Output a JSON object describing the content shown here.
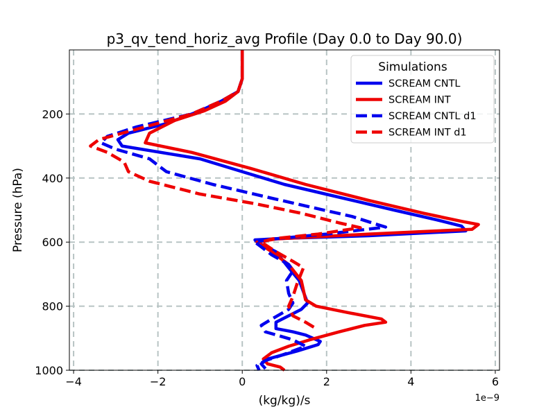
{
  "chart_data": {
    "type": "line",
    "title": "p3_qv_tend_horiz_avg Profile (Day 0.0 to Day 90.0)",
    "xlabel": "(kg/kg)/s",
    "ylabel": "Pressure (hPa)",
    "x_offset_text": "1e−9",
    "xlim": [
      -4.1,
      6.1
    ],
    "ylim": [
      1000,
      0
    ],
    "xticks": [
      -4,
      -2,
      0,
      2,
      4,
      6
    ],
    "xtick_labels": [
      "−4",
      "−2",
      "0",
      "2",
      "4",
      "6"
    ],
    "yticks": [
      200,
      400,
      600,
      800,
      1000
    ],
    "ytick_labels": [
      "200",
      "400",
      "600",
      "800",
      "1000"
    ],
    "grid": true,
    "legend": {
      "title": "Simulations",
      "placement": "top-right"
    },
    "series": [
      {
        "name": "SCREAM CNTL",
        "color": "#0000ee",
        "style": "solid",
        "points": [
          [
            0,
            0
          ],
          [
            0,
            40
          ],
          [
            0,
            90
          ],
          [
            -0.1,
            130
          ],
          [
            -0.5,
            160
          ],
          [
            -1.0,
            190
          ],
          [
            -1.8,
            230
          ],
          [
            -2.7,
            260
          ],
          [
            -2.95,
            280
          ],
          [
            -2.85,
            300
          ],
          [
            -1.0,
            340
          ],
          [
            0.0,
            380
          ],
          [
            1.0,
            420
          ],
          [
            2.3,
            460
          ],
          [
            3.6,
            500
          ],
          [
            4.6,
            530
          ],
          [
            5.2,
            550
          ],
          [
            5.3,
            565
          ],
          [
            3.0,
            580
          ],
          [
            1.0,
            588
          ],
          [
            0.3,
            593
          ],
          [
            0.35,
            600
          ],
          [
            0.8,
            630
          ],
          [
            1.1,
            680
          ],
          [
            1.35,
            720
          ],
          [
            1.55,
            790
          ],
          [
            1.4,
            810
          ],
          [
            0.8,
            850
          ],
          [
            0.8,
            870
          ],
          [
            1.2,
            880
          ],
          [
            1.5,
            890
          ],
          [
            1.85,
            910
          ],
          [
            1.8,
            920
          ],
          [
            1.3,
            940
          ],
          [
            0.6,
            965
          ],
          [
            0.45,
            980
          ],
          [
            0.55,
            995
          ]
        ]
      },
      {
        "name": "SCREAM INT",
        "color": "#ee0000",
        "style": "solid",
        "points": [
          [
            0,
            0
          ],
          [
            0,
            40
          ],
          [
            0,
            90
          ],
          [
            -0.1,
            130
          ],
          [
            -0.4,
            160
          ],
          [
            -0.9,
            190
          ],
          [
            -1.6,
            220
          ],
          [
            -2.2,
            260
          ],
          [
            -2.3,
            290
          ],
          [
            -1.2,
            320
          ],
          [
            0.2,
            370
          ],
          [
            1.5,
            420
          ],
          [
            3.0,
            470
          ],
          [
            4.3,
            510
          ],
          [
            5.2,
            535
          ],
          [
            5.6,
            545
          ],
          [
            5.45,
            560
          ],
          [
            3.0,
            575
          ],
          [
            0.8,
            590
          ],
          [
            0.35,
            600
          ],
          [
            0.7,
            630
          ],
          [
            1.1,
            670
          ],
          [
            1.4,
            720
          ],
          [
            1.5,
            780
          ],
          [
            1.75,
            800
          ],
          [
            2.5,
            820
          ],
          [
            3.3,
            840
          ],
          [
            3.4,
            850
          ],
          [
            2.9,
            860
          ],
          [
            2.3,
            880
          ],
          [
            1.6,
            905
          ],
          [
            1.1,
            925
          ],
          [
            0.7,
            945
          ],
          [
            0.5,
            965
          ],
          [
            0.6,
            980
          ],
          [
            0.9,
            990
          ],
          [
            1.0,
            1000
          ]
        ]
      },
      {
        "name": "SCREAM CNTL d1",
        "color": "#0000ee",
        "style": "dashed",
        "points": [
          [
            0,
            0
          ],
          [
            0,
            40
          ],
          [
            0,
            90
          ],
          [
            -0.1,
            130
          ],
          [
            -0.5,
            160
          ],
          [
            -1.2,
            200
          ],
          [
            -2.5,
            240
          ],
          [
            -3.2,
            270
          ],
          [
            -3.35,
            290
          ],
          [
            -3.0,
            310
          ],
          [
            -2.2,
            340
          ],
          [
            -1.8,
            380
          ],
          [
            -0.7,
            420
          ],
          [
            0.6,
            460
          ],
          [
            1.6,
            490
          ],
          [
            2.6,
            520
          ],
          [
            3.2,
            545
          ],
          [
            3.4,
            553
          ],
          [
            2.0,
            575
          ],
          [
            0.6,
            592
          ],
          [
            0.3,
            600
          ],
          [
            0.7,
            640
          ],
          [
            1.1,
            670
          ],
          [
            1.2,
            690
          ],
          [
            1.05,
            720
          ],
          [
            1.1,
            760
          ],
          [
            1.2,
            790
          ],
          [
            1.1,
            810
          ],
          [
            0.7,
            840
          ],
          [
            0.45,
            860
          ],
          [
            0.55,
            880
          ],
          [
            1.2,
            905
          ],
          [
            1.5,
            925
          ],
          [
            1.0,
            950
          ],
          [
            0.55,
            970
          ],
          [
            0.35,
            985
          ],
          [
            0.4,
            1000
          ]
        ]
      },
      {
        "name": "SCREAM INT d1",
        "color": "#ee0000",
        "style": "dashed",
        "points": [
          [
            0,
            0
          ],
          [
            0,
            40
          ],
          [
            0,
            90
          ],
          [
            -0.1,
            130
          ],
          [
            -0.5,
            160
          ],
          [
            -1.2,
            200
          ],
          [
            -2.3,
            240
          ],
          [
            -3.4,
            280
          ],
          [
            -3.6,
            300
          ],
          [
            -3.2,
            320
          ],
          [
            -2.8,
            350
          ],
          [
            -2.7,
            380
          ],
          [
            -2.2,
            410
          ],
          [
            -1.0,
            450
          ],
          [
            0.3,
            480
          ],
          [
            1.4,
            510
          ],
          [
            2.3,
            540
          ],
          [
            2.8,
            555
          ],
          [
            1.8,
            575
          ],
          [
            0.7,
            590
          ],
          [
            0.45,
            600
          ],
          [
            0.8,
            630
          ],
          [
            1.2,
            660
          ],
          [
            1.45,
            680
          ],
          [
            1.3,
            730
          ],
          [
            1.2,
            770
          ],
          [
            1.1,
            800
          ],
          [
            1.2,
            830
          ],
          [
            1.5,
            850
          ],
          [
            1.75,
            870
          ]
        ]
      }
    ]
  }
}
